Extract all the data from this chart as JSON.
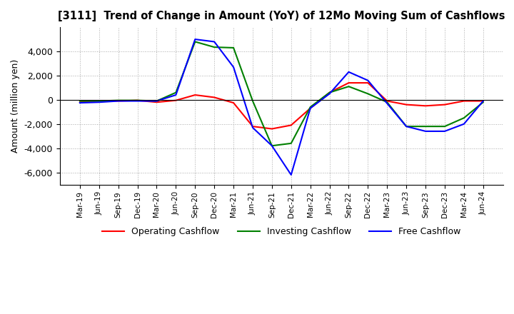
{
  "title": "[3111]  Trend of Change in Amount (YoY) of 12Mo Moving Sum of Cashflows",
  "ylabel": "Amount (million yen)",
  "x_labels": [
    "Mar-19",
    "Jun-19",
    "Sep-19",
    "Dec-19",
    "Mar-20",
    "Jun-20",
    "Sep-20",
    "Dec-20",
    "Mar-21",
    "Jun-21",
    "Sep-21",
    "Dec-21",
    "Mar-22",
    "Jun-22",
    "Sep-22",
    "Dec-22",
    "Mar-23",
    "Jun-23",
    "Sep-23",
    "Dec-23",
    "Mar-24",
    "Jun-24"
  ],
  "operating_cashflow": [
    -200,
    -100,
    -100,
    -50,
    -200,
    -50,
    400,
    200,
    -250,
    -2200,
    -2400,
    -2100,
    -700,
    600,
    1400,
    1400,
    -100,
    -400,
    -500,
    -400,
    -100,
    -100
  ],
  "investing_cashflow": [
    -100,
    -100,
    -50,
    -50,
    -100,
    600,
    4800,
    4350,
    4300,
    -100,
    -3800,
    -3600,
    -600,
    600,
    1100,
    500,
    -200,
    -2200,
    -2200,
    -2200,
    -1500,
    -200
  ],
  "free_cashflow": [
    -250,
    -200,
    -100,
    -100,
    -100,
    400,
    5000,
    4800,
    2700,
    -2300,
    -3800,
    -6200,
    -700,
    500,
    2300,
    1600,
    -300,
    -2200,
    -2600,
    -2600,
    -2000,
    -100
  ],
  "operating_color": "#ff0000",
  "investing_color": "#008000",
  "free_color": "#0000ff",
  "ylim": [
    -7000,
    6000
  ],
  "yticks": [
    -6000,
    -4000,
    -2000,
    0,
    2000,
    4000
  ],
  "background_color": "#ffffff",
  "grid_color": "#aaaaaa"
}
